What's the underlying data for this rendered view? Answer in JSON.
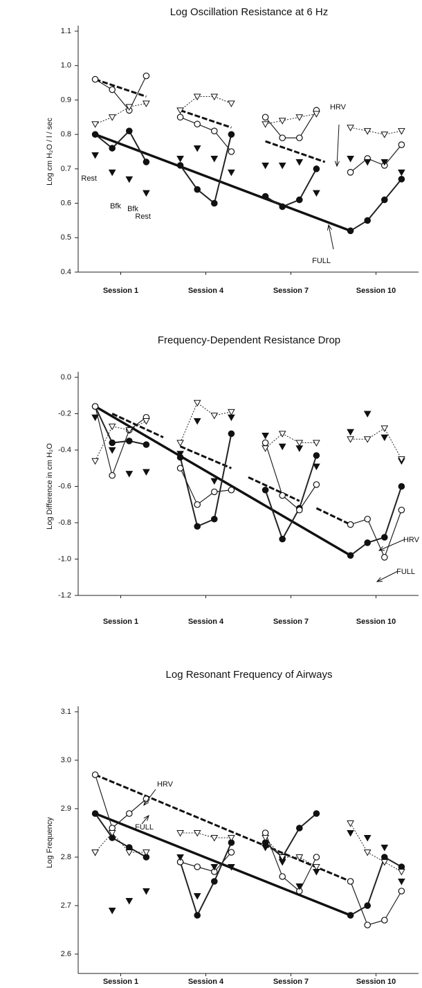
{
  "chart_data": [
    {
      "type": "line",
      "title": "Log Oscillation Resistance at 6 Hz",
      "y_label": "Log cm H₂O / l / sec",
      "x": [
        1,
        2,
        3,
        4,
        6,
        7,
        8,
        9,
        11,
        12,
        13,
        14,
        16,
        17,
        18,
        19
      ],
      "xlim": [
        0,
        20
      ],
      "xticks": [
        {
          "value": 2.5,
          "label": "Session 1"
        },
        {
          "value": 7.5,
          "label": "Session 4"
        },
        {
          "value": 12.5,
          "label": "Session 7"
        },
        {
          "value": 17.5,
          "label": "Session 10"
        }
      ],
      "ylim": [
        0.4,
        1.1
      ],
      "yticks": [
        0.4,
        0.5,
        0.6,
        0.7,
        0.8,
        0.9,
        {
          "value": 1,
          "label": "1.0"
        },
        1.1
      ],
      "series": [
        {
          "marker": "filled-circle",
          "line": "solid",
          "values": [
            0.8,
            0.76,
            0.81,
            0.72,
            0.71,
            0.64,
            0.6,
            0.8,
            0.62,
            0.59,
            0.61,
            0.7,
            0.52,
            0.55,
            0.61,
            0.67
          ]
        },
        {
          "marker": "open-circle",
          "line": "solid",
          "values": [
            0.96,
            0.93,
            0.87,
            0.97,
            0.85,
            0.83,
            0.81,
            0.75,
            0.85,
            0.79,
            0.79,
            0.87,
            0.69,
            0.73,
            0.71,
            0.77
          ]
        },
        {
          "marker": "filled-triangle",
          "line": "none",
          "values": [
            0.74,
            0.69,
            0.67,
            0.63,
            0.73,
            0.76,
            0.73,
            0.69,
            0.71,
            0.71,
            0.72,
            0.63,
            0.73,
            0.72,
            0.72,
            0.69
          ]
        },
        {
          "marker": "open-triangle",
          "line": "dotted",
          "values": [
            0.83,
            0.85,
            0.88,
            0.89,
            0.87,
            0.91,
            0.91,
            0.89,
            0.83,
            0.84,
            0.85,
            0.86,
            0.82,
            0.81,
            0.8,
            0.81
          ]
        }
      ],
      "trend_lines": [
        {
          "style": "solid",
          "x": [
            1,
            16
          ],
          "values": [
            0.8,
            0.52
          ]
        },
        {
          "style": "dashed",
          "x": [
            1,
            4,
            5,
            6,
            9,
            10,
            11,
            14.5
          ],
          "values": [
            0.96,
            0.91,
            null,
            0.87,
            0.82,
            null,
            0.78,
            0.72
          ]
        }
      ],
      "annotations": [
        "Rest",
        "Bfk",
        "Bfk",
        "Rest",
        "HRV",
        "FULL"
      ]
    },
    {
      "type": "line",
      "title": "Frequency-Dependent Resistance Drop",
      "y_label": "Log Difference in cm H₂O",
      "x": [
        1,
        2,
        3,
        4,
        6,
        7,
        8,
        9,
        11,
        12,
        13,
        14,
        16,
        17,
        18,
        19
      ],
      "xlim": [
        0,
        20
      ],
      "xticks": [
        {
          "value": 2.5,
          "label": "Session 1"
        },
        {
          "value": 7.5,
          "label": "Session 4"
        },
        {
          "value": 12.5,
          "label": "Session 7"
        },
        {
          "value": 17.5,
          "label": "Session 10"
        }
      ],
      "ylim": [
        -1.2,
        0
      ],
      "yticks": [
        -1.2,
        {
          "value": -1,
          "label": "-1.0"
        },
        -0.8,
        -0.6,
        -0.4,
        -0.2,
        {
          "value": 0,
          "label": "0.0"
        }
      ],
      "series": [
        {
          "marker": "filled-circle",
          "line": "solid",
          "values": [
            -0.16,
            -0.36,
            -0.35,
            -0.37,
            -0.44,
            -0.82,
            -0.78,
            -0.31,
            -0.62,
            -0.89,
            -0.72,
            -0.43,
            -0.98,
            -0.91,
            -0.88,
            -0.6
          ]
        },
        {
          "marker": "open-circle",
          "line": "solid",
          "values": [
            -0.16,
            -0.54,
            -0.29,
            -0.22,
            -0.5,
            -0.7,
            -0.63,
            -0.62,
            -0.36,
            -0.65,
            -0.73,
            -0.59,
            -0.81,
            -0.78,
            -0.99,
            -0.73
          ]
        },
        {
          "marker": "filled-triangle",
          "line": "none",
          "values": [
            -0.22,
            -0.4,
            -0.53,
            -0.52,
            -0.42,
            -0.24,
            -0.57,
            -0.22,
            -0.32,
            -0.38,
            -0.39,
            -0.49,
            -0.3,
            -0.2,
            -0.33,
            -0.46
          ]
        },
        {
          "marker": "open-triangle",
          "line": "dotted",
          "values": [
            -0.46,
            -0.27,
            -0.29,
            -0.24,
            -0.36,
            -0.14,
            -0.21,
            -0.19,
            -0.39,
            -0.31,
            -0.36,
            -0.36,
            -0.34,
            -0.34,
            -0.28,
            -0.45
          ]
        }
      ],
      "trend_lines": [
        {
          "style": "solid",
          "x": [
            1,
            16
          ],
          "values": [
            -0.16,
            -0.98
          ]
        },
        {
          "style": "dashed",
          "x": [
            2,
            5,
            5.5,
            6,
            9,
            9.5,
            10,
            13,
            13.5,
            14,
            16
          ],
          "values": [
            -0.2,
            -0.33,
            null,
            -0.38,
            -0.5,
            null,
            -0.55,
            -0.68,
            null,
            -0.72,
            -0.81
          ]
        }
      ],
      "annotations": [
        "HRV",
        "FULL"
      ]
    },
    {
      "type": "line",
      "title": "Log Resonant Frequency of Airways",
      "y_label": "Log Frequency",
      "x": [
        1,
        2,
        3,
        4,
        6,
        7,
        8,
        9,
        11,
        12,
        13,
        14,
        16,
        17,
        18,
        19
      ],
      "xlim": [
        0,
        20
      ],
      "xticks": [
        {
          "value": 2.5,
          "label": "Session 1"
        },
        {
          "value": 7.5,
          "label": "Session 4"
        },
        {
          "value": 12.5,
          "label": "Session 7"
        },
        {
          "value": 17.5,
          "label": "Session 10"
        }
      ],
      "ylim": [
        2.56,
        3.1
      ],
      "yticks": [
        2.6,
        2.7,
        2.8,
        2.9,
        {
          "value": 3,
          "label": "3.0"
        },
        3.1
      ],
      "series": [
        {
          "marker": "filled-circle",
          "line": "solid",
          "values": [
            2.89,
            2.84,
            2.82,
            2.8,
            2.79,
            2.68,
            2.75,
            2.83,
            2.83,
            2.8,
            2.86,
            2.89,
            2.68,
            2.7,
            2.8,
            2.78
          ]
        },
        {
          "marker": "open-circle",
          "line": "solid",
          "values": [
            2.97,
            2.86,
            2.89,
            2.92,
            2.79,
            2.78,
            2.77,
            2.81,
            2.85,
            2.76,
            2.73,
            2.8,
            2.75,
            2.66,
            2.67,
            2.73
          ]
        },
        {
          "marker": "filled-triangle",
          "line": "none",
          "values": [
            2.81,
            2.69,
            2.71,
            2.73,
            2.8,
            2.72,
            2.78,
            2.78,
            2.82,
            2.79,
            2.74,
            2.77,
            2.85,
            2.84,
            2.82,
            2.75
          ]
        },
        {
          "marker": "open-triangle",
          "line": "dotted",
          "values": [
            2.81,
            2.85,
            2.81,
            2.81,
            2.85,
            2.85,
            2.84,
            2.84,
            2.84,
            2.8,
            2.8,
            2.78,
            2.87,
            2.81,
            2.79,
            2.77
          ]
        }
      ],
      "trend_lines": [
        {
          "style": "solid",
          "x": [
            1,
            16
          ],
          "values": [
            2.89,
            2.68
          ]
        },
        {
          "style": "dashed",
          "x": [
            1,
            16
          ],
          "values": [
            2.97,
            2.75
          ]
        }
      ],
      "annotations": [
        "HRV",
        "FULL"
      ]
    }
  ]
}
